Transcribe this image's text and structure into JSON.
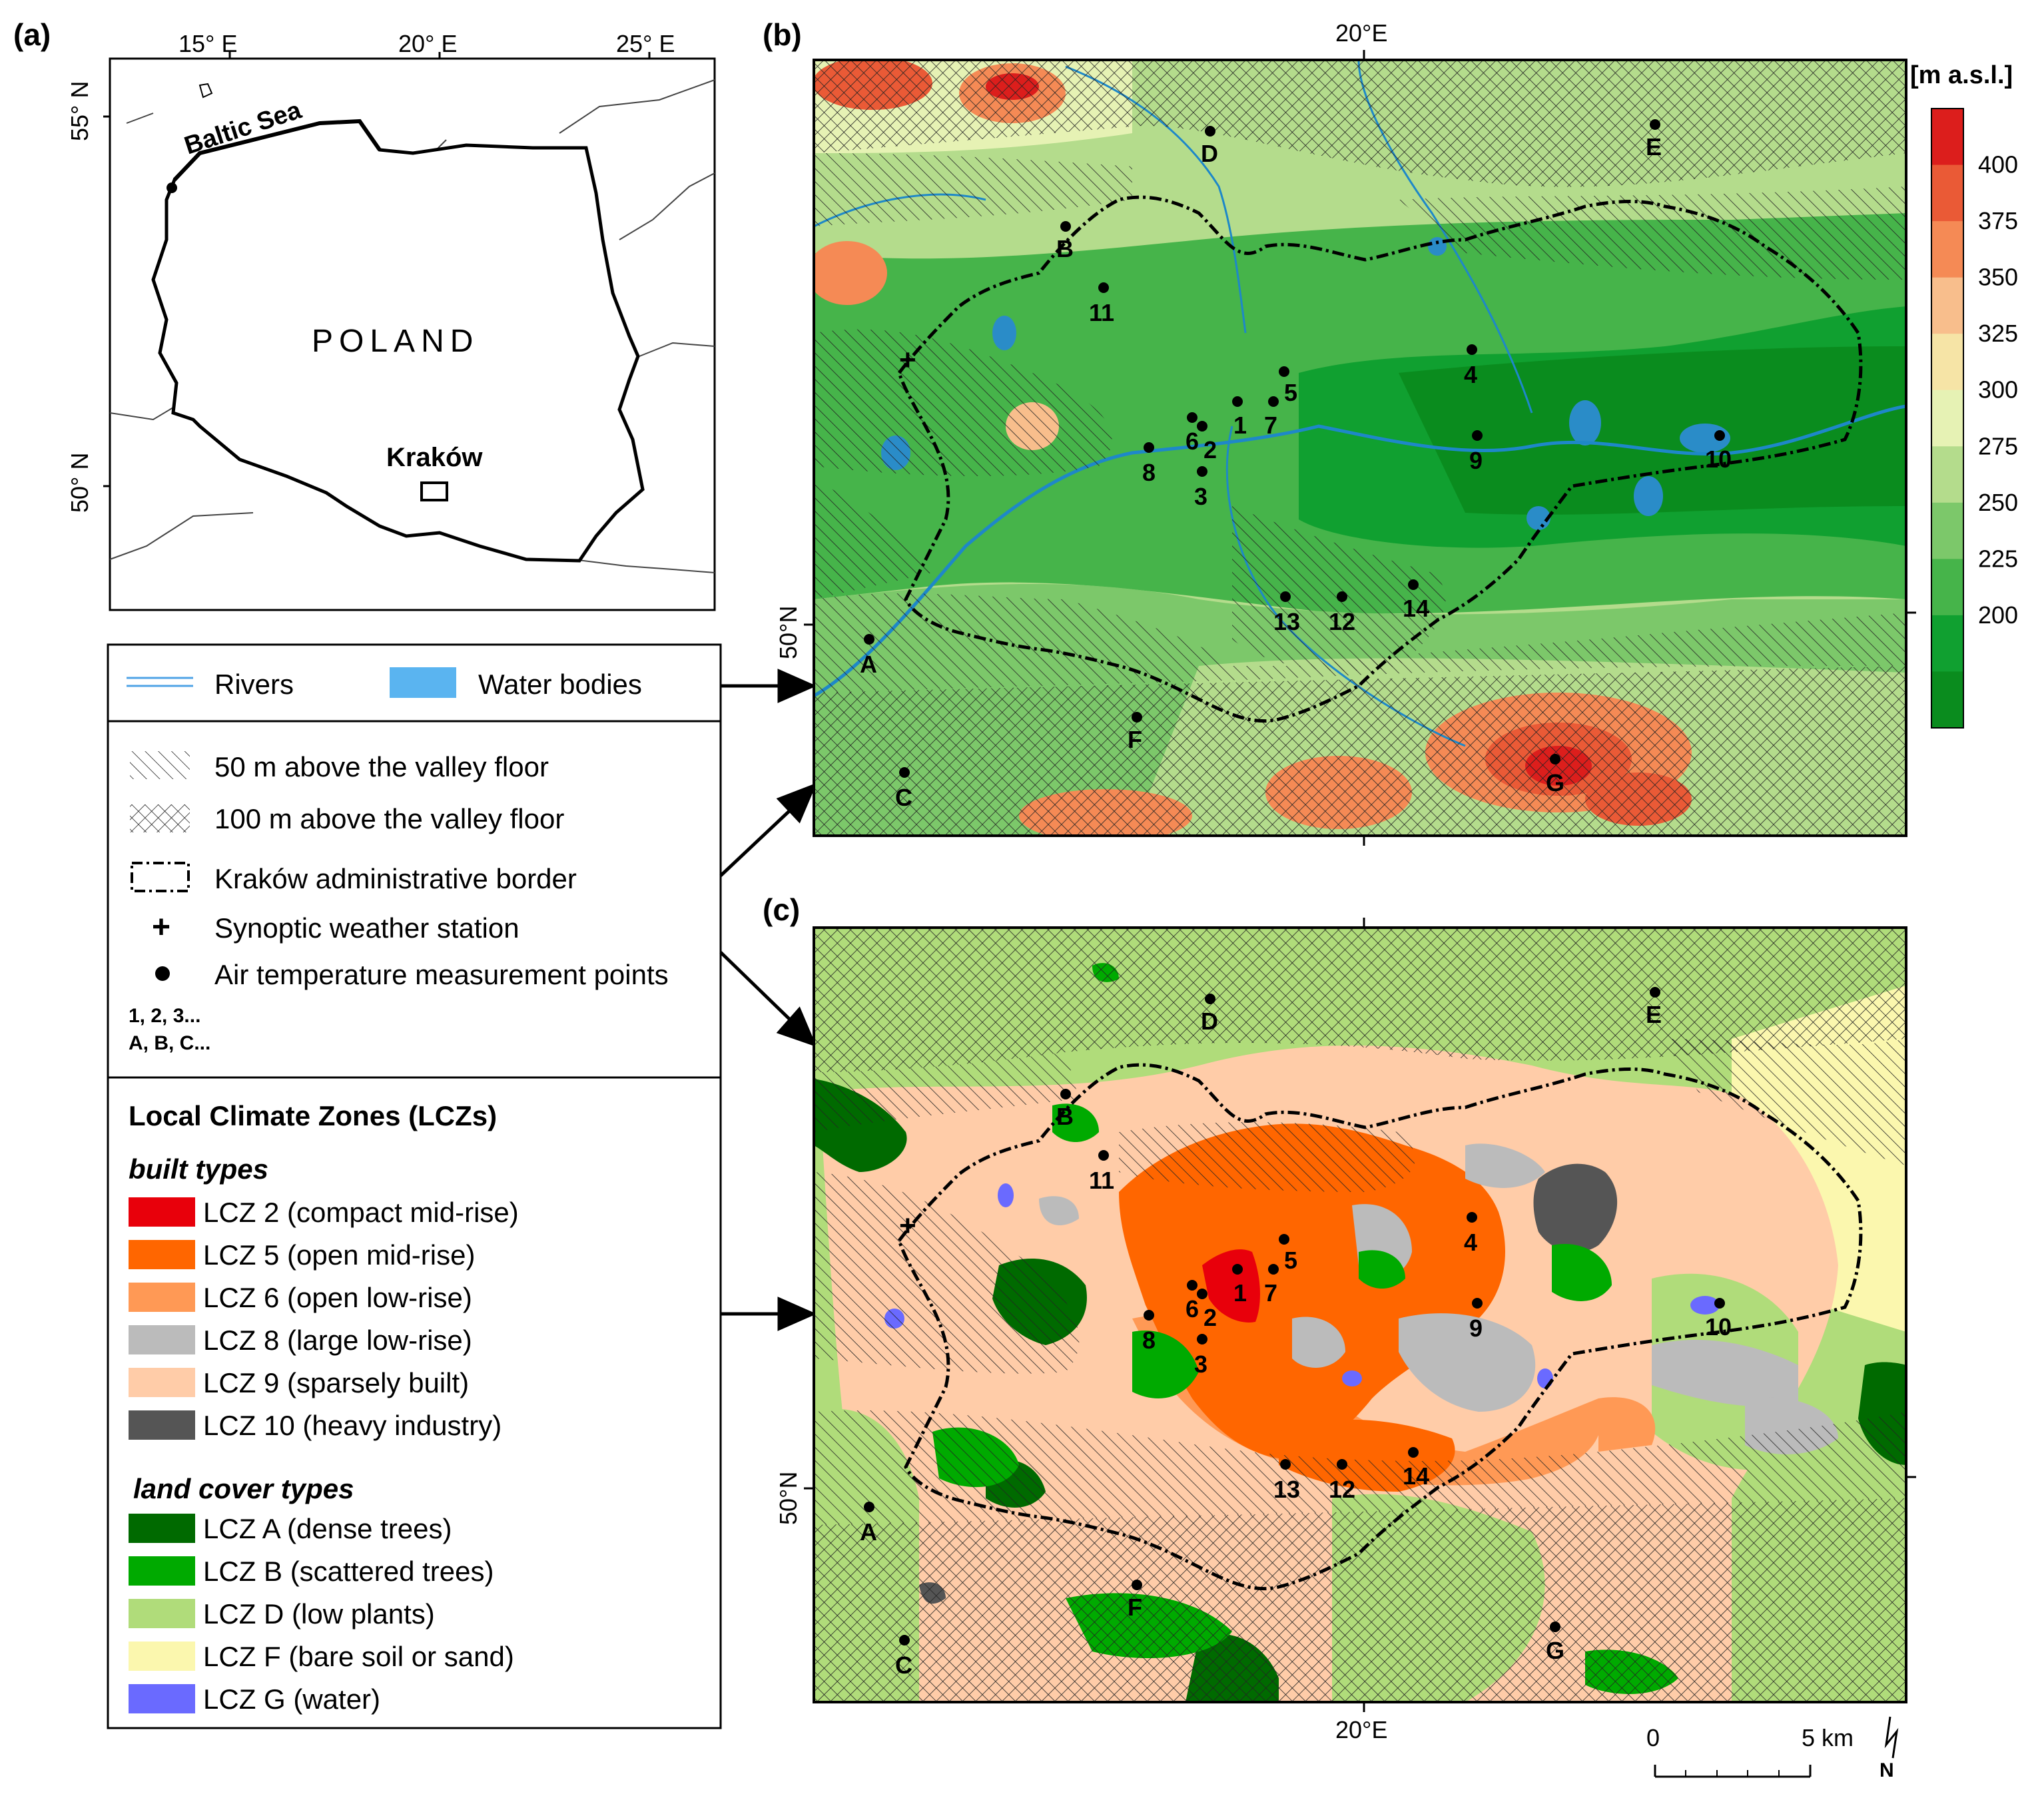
{
  "panels": {
    "a": "(a)",
    "b": "(b)",
    "c": "(c)"
  },
  "overview_map": {
    "top_ticks": [
      "15° E",
      "20° E",
      "25° E"
    ],
    "left_ticks": [
      "55° N",
      "50° N"
    ],
    "sea_label": "Baltic Sea",
    "country_label": "POLAND",
    "city_label": "Kraków"
  },
  "map_b": {
    "top_tick": "20°E",
    "left_tick": "50°N",
    "colorbar_title": "[m a.s.l.]",
    "colorbar_labels": [
      "400",
      "375",
      "350",
      "325",
      "300",
      "275",
      "250",
      "225",
      "200"
    ],
    "colorbar_colors": [
      "#dc1e1c",
      "#ea5a36",
      "#f58a55",
      "#f8be8c",
      "#f6e4a6",
      "#e6f2b4",
      "#b4dc8c",
      "#7cc86a",
      "#46b44a",
      "#10a030",
      "#0a8c1e"
    ]
  },
  "map_c": {
    "bottom_tick": "20°E",
    "left_tick": "50°N"
  },
  "measurement_points": [
    "1",
    "2",
    "3",
    "4",
    "5",
    "6",
    "7",
    "8",
    "9",
    "10",
    "11",
    "12",
    "13",
    "14",
    "A",
    "B",
    "C",
    "D",
    "E",
    "F",
    "G"
  ],
  "legend": {
    "rivers": "Rivers",
    "water_bodies": "Water bodies",
    "hatch50": "50 m above the valley floor",
    "hatch100": "100 m above the valley floor",
    "border": "Kraków administrative border",
    "synoptic": "Synoptic weather station",
    "measurement": "Air temperature measurement points",
    "codes_num": "1, 2, 3...",
    "codes_alpha": "A, B, C...",
    "lcz_title": "Local Climate Zones (LCZs)",
    "built_title": "built types",
    "built": [
      {
        "label": "LCZ 2 (compact mid-rise)",
        "color": "#e8000b"
      },
      {
        "label": "LCZ 5 (open mid-rise)",
        "color": "#ff6600"
      },
      {
        "label": "LCZ 6 (open low-rise)",
        "color": "#ff9955"
      },
      {
        "label": "LCZ 8 (large low-rise)",
        "color": "#bbbbbb"
      },
      {
        "label": "LCZ 9 (sparsely built)",
        "color": "#ffcca8"
      },
      {
        "label": "LCZ 10 (heavy industry)",
        "color": "#555555"
      }
    ],
    "land_title": "land cover types",
    "land": [
      {
        "label": "LCZ A (dense trees)",
        "color": "#006a00"
      },
      {
        "label": "LCZ B (scattered trees)",
        "color": "#00aa00"
      },
      {
        "label": "LCZ D (low plants)",
        "color": "#b0dc7a"
      },
      {
        "label": "LCZ F (bare soil or sand)",
        "color": "#fbf7ae"
      },
      {
        "label": "LCZ G (water)",
        "color": "#6a6aff"
      }
    ]
  },
  "scale_bar": {
    "zero": "0",
    "five": "5 km"
  },
  "north_label": "N"
}
